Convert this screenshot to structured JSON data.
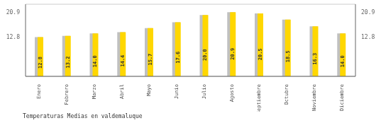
{
  "chart_data": {
    "type": "bar",
    "title": "Temperaturas Medias en valdemaluque",
    "categories": [
      "Enero",
      "Febrero",
      "Marzo",
      "Abril",
      "Mayo",
      "Junio",
      "Julio",
      "Agosto",
      "Septiembre",
      "Octubre",
      "Noviembre",
      "Diciembre"
    ],
    "series": [
      {
        "color": "#C0C0C0",
        "values": [
          12.8,
          13.2,
          14.0,
          14.4,
          15.7,
          17.6,
          20.0,
          20.9,
          20.5,
          18.5,
          16.3,
          14.0
        ]
      },
      {
        "color": "#FFD700",
        "values": [
          12.8,
          13.2,
          14.0,
          14.4,
          15.7,
          17.6,
          20.0,
          20.9,
          20.5,
          18.5,
          16.3,
          14.0
        ],
        "value_labels": [
          "12.8",
          "13.2",
          "14.0",
          "14.4",
          "15.7",
          "17.6",
          "20.0",
          "20.9",
          "20.5",
          "18.5",
          "16.3",
          "14.0"
        ]
      }
    ],
    "ylim": [
      0,
      23.5
    ],
    "yticks": [
      12.8,
      20.9
    ],
    "grid": true,
    "data_labels": true
  }
}
